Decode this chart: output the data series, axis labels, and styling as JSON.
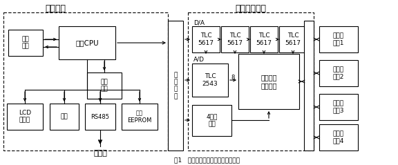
{
  "title_left": "主控模塊",
  "title_right": "過程處理模塊",
  "fig_caption": "圖1   化成充放電控制器的硬件結構圖",
  "bg_color": "#ffffff",
  "box_edge_color": "#000000",
  "box_fill_color": "#ffffff",
  "arrow_color": "#000000",
  "text_color": "#000000",
  "font_size": 6.5,
  "title_font_size": 9
}
